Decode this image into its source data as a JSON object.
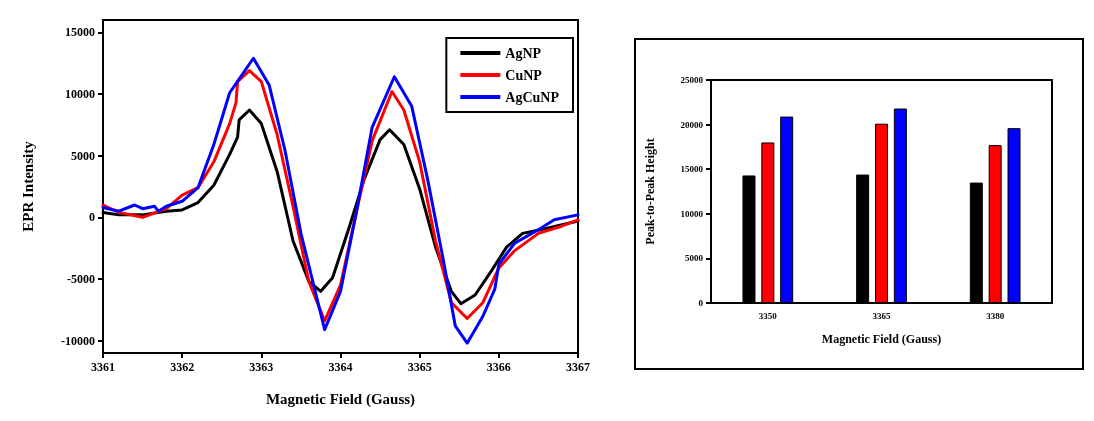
{
  "chart_data": [
    {
      "type": "line",
      "xlabel": "Magnetic Field (Gauss)",
      "ylabel": "EPR Intensity",
      "xlim": [
        3361,
        3367
      ],
      "xticks": [
        3361,
        3362,
        3363,
        3364,
        3365,
        3366,
        3367
      ],
      "ylim": [
        -11000,
        16000
      ],
      "yticks": [
        -10000,
        -5000,
        0,
        5000,
        10000,
        15000
      ],
      "grid": false,
      "legend": "top right",
      "marker": "none",
      "line_style": "solid",
      "series": [
        {
          "name": "AgNP",
          "color": "#000000",
          "x": [
            3361,
            3361.2,
            3361.5,
            3361.8,
            3362,
            3362.2,
            3362.4,
            3362.6,
            3362.7,
            3362.72,
            3362.85,
            3363,
            3363.2,
            3363.4,
            3363.6,
            3363.75,
            3363.9,
            3364.1,
            3364.3,
            3364.5,
            3364.62,
            3364.8,
            3365,
            3365.2,
            3365.4,
            3365.52,
            3365.7,
            3365.9,
            3366.1,
            3366.3,
            3366.6,
            3367
          ],
          "values": [
            400,
            200,
            200,
            500,
            600,
            1200,
            2600,
            5100,
            6500,
            7900,
            8700,
            7600,
            3700,
            -1900,
            -5200,
            -6000,
            -4900,
            -1000,
            3100,
            6300,
            7100,
            5900,
            2300,
            -2400,
            -6000,
            -7000,
            -6300,
            -4400,
            -2400,
            -1300,
            -900,
            -300
          ]
        },
        {
          "name": "CuNP",
          "color": "#ff0000",
          "x": [
            3361,
            3361.2,
            3361.5,
            3361.8,
            3362,
            3362.2,
            3362.4,
            3362.6,
            3362.68,
            3362.7,
            3362.85,
            3363,
            3363.2,
            3363.4,
            3363.6,
            3363.8,
            3364,
            3364.2,
            3364.4,
            3364.65,
            3364.8,
            3365,
            3365.2,
            3365.4,
            3365.6,
            3365.8,
            3366,
            3366.2,
            3366.5,
            3366.8,
            3367
          ],
          "values": [
            1000,
            400,
            0,
            700,
            1800,
            2400,
            4500,
            7600,
            9300,
            11000,
            11900,
            11000,
            6700,
            900,
            -5200,
            -8400,
            -5500,
            400,
            6200,
            10200,
            8700,
            4500,
            -1900,
            -6900,
            -8200,
            -6900,
            -4100,
            -2700,
            -1300,
            -700,
            -200
          ]
        },
        {
          "name": "AgCuNP",
          "color": "#0000ff",
          "x": [
            3361,
            3361.2,
            3361.4,
            3361.5,
            3361.65,
            3361.7,
            3361.8,
            3362,
            3362.2,
            3362.4,
            3362.6,
            3362.9,
            3363.1,
            3363.3,
            3363.5,
            3363.8,
            3364,
            3364.2,
            3364.4,
            3364.68,
            3364.9,
            3365.1,
            3365.3,
            3365.45,
            3365.6,
            3365.8,
            3365.95,
            3366,
            3366.2,
            3366.5,
            3366.7,
            3367
          ],
          "values": [
            800,
            500,
            1000,
            700,
            900,
            500,
            900,
            1300,
            2400,
            5900,
            10100,
            12900,
            10700,
            5400,
            -1300,
            -9100,
            -6000,
            400,
            7300,
            11400,
            9000,
            3100,
            -3500,
            -8800,
            -10200,
            -8000,
            -5800,
            -3800,
            -2100,
            -1000,
            -200,
            200
          ]
        }
      ]
    },
    {
      "type": "bar",
      "xlabel": "Magnetic Field (Gauss)",
      "ylabel": "Peak-to-Peak Height",
      "categories": [
        "3350",
        "3365",
        "3380"
      ],
      "ylim": [
        0,
        25000
      ],
      "yticks": [
        0,
        5000,
        10000,
        15000,
        20000,
        25000
      ],
      "grid": false,
      "legend": false,
      "series": [
        {
          "color": "#000000",
          "values": [
            14300,
            14400,
            13500
          ]
        },
        {
          "color": "#ff0000",
          "values": [
            18000,
            20100,
            17700
          ]
        },
        {
          "color": "#0000ff",
          "values": [
            20900,
            21800,
            19600
          ]
        }
      ]
    }
  ]
}
